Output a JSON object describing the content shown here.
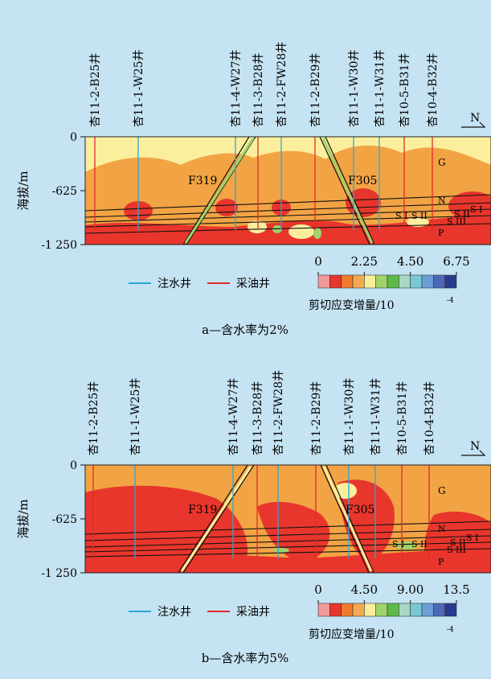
{
  "panels": [
    {
      "caption": "a—含水率为2%",
      "wells": [
        {
          "name": "杏11-2-B25井",
          "type": "oil"
        },
        {
          "name": "杏11-1-W25井",
          "type": "water"
        },
        {
          "name": "杏11-4-W27井",
          "type": "water"
        },
        {
          "name": "杏11-3-B28井",
          "type": "oil"
        },
        {
          "name": "杏11-2-FW28井",
          "type": "water"
        },
        {
          "name": "杏11-2-B29井",
          "type": "oil"
        },
        {
          "name": "杏11-1-W30井",
          "type": "water"
        },
        {
          "name": "杏11-1-W31井",
          "type": "water"
        },
        {
          "name": "杏10-5-B31井",
          "type": "oil"
        },
        {
          "name": "杏10-4-B32井",
          "type": "oil"
        }
      ],
      "y_axis": {
        "label": "海拔/m",
        "ticks": [
          "0",
          "-625",
          "-1 250"
        ]
      },
      "north": "N",
      "faults": [
        "F319",
        "F305"
      ],
      "layers": [
        "G",
        "N",
        "S I",
        "S II",
        "S III",
        "P"
      ],
      "layer_labels_right": [
        "S I",
        "S II"
      ],
      "legend": {
        "water_well": "注水井",
        "oil_well": "采油井",
        "scale_ticks": [
          "0",
          "2.25",
          "4.50",
          "6.75"
        ],
        "title": "剪切应变增量/10",
        "exponent": "-4"
      }
    },
    {
      "caption": "b—含水率为5%",
      "wells": [
        {
          "name": "杏11-2-B25井",
          "type": "oil"
        },
        {
          "name": "杏11-1-W25井",
          "type": "water"
        },
        {
          "name": "杏11-4-W27井",
          "type": "water"
        },
        {
          "name": "杏11-3-B28井",
          "type": "oil"
        },
        {
          "name": "杏11-2-FW28井",
          "type": "water"
        },
        {
          "name": "杏11-2-B29井",
          "type": "oil"
        },
        {
          "name": "杏11-1-W30井",
          "type": "water"
        },
        {
          "name": "杏11-1-W31井",
          "type": "water"
        },
        {
          "name": "杏10-5-B31井",
          "type": "oil"
        },
        {
          "name": "杏10-4-B32井",
          "type": "oil"
        }
      ],
      "y_axis": {
        "label": "海拔/m",
        "ticks": [
          "0",
          "-625",
          "-1 250"
        ]
      },
      "north": "N",
      "faults": [
        "F319",
        "F305"
      ],
      "layers": [
        "G",
        "N",
        "S I",
        "S II",
        "S III",
        "P"
      ],
      "layer_labels_right": [
        "S I",
        "S II"
      ],
      "legend": {
        "water_well": "注水井",
        "oil_well": "采油井",
        "scale_ticks": [
          "0",
          "4.50",
          "9.00",
          "13.5"
        ],
        "title": "剪切应变增量/10",
        "exponent": "-4"
      }
    }
  ],
  "colors": {
    "water_well": "#2aa7d8",
    "oil_well": "#e22a2a",
    "scale": [
      "#f19a9a",
      "#e8362c",
      "#f07a2a",
      "#f3aa4e",
      "#fbee9a",
      "#9fd36b",
      "#5dba48",
      "#a6d8c7",
      "#79c8d6",
      "#6a9fd8",
      "#4e68b8",
      "#263a8f"
    ]
  }
}
